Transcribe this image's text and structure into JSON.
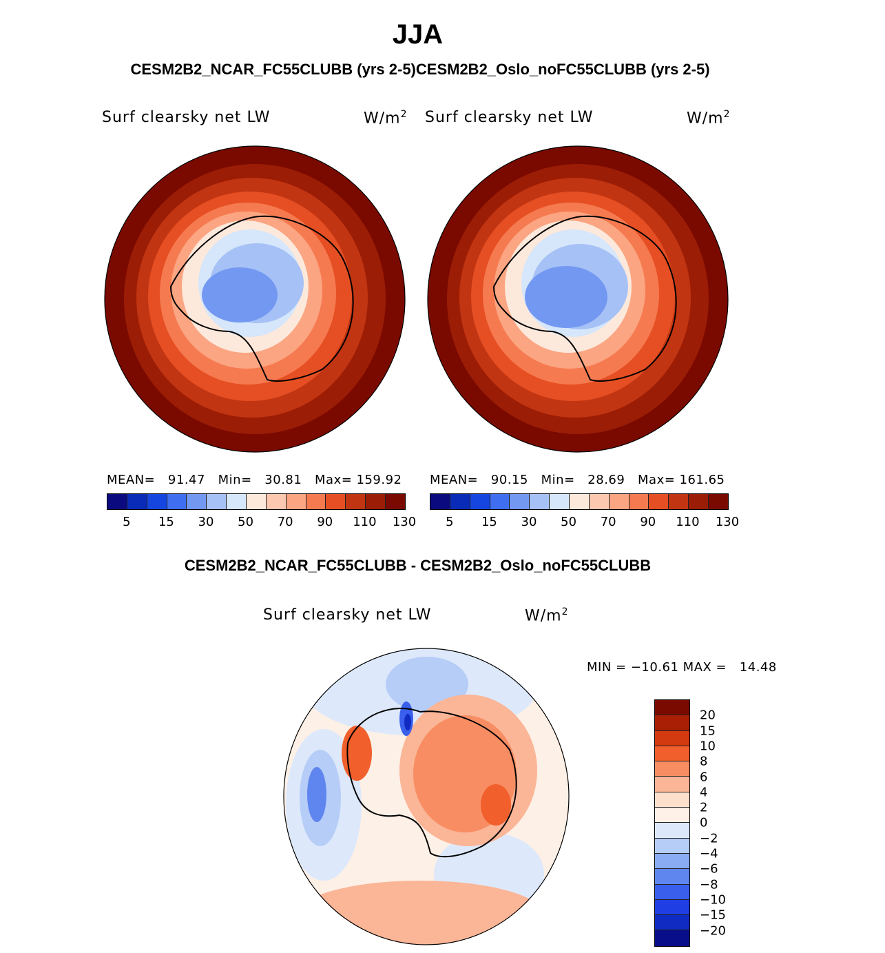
{
  "title": "JJA",
  "subtitle_top": "CESM2B2_NCAR_FC55CLUBB (yrs 2-5)CESM2B2_Oslo_noFC55CLUBB (yrs 2-5)",
  "subtitle_diff": "CESM2B2_NCAR_FC55CLUBB - CESM2B2_Oslo_noFC55CLUBB",
  "panels": [
    {
      "variable": "Surf clearsky net LW",
      "units_base": "W/m",
      "units_exp": "2",
      "stats": "MEAN=   91.47   Min=   30.81   Max= 159.92",
      "mean": 91.47,
      "min": 30.81,
      "max": 159.92
    },
    {
      "variable": "Surf clearsky net LW",
      "units_base": "W/m",
      "units_exp": "2",
      "stats": "MEAN=   90.15   Min=   28.69   Max= 161.65",
      "mean": 90.15,
      "min": 28.69,
      "max": 161.65
    }
  ],
  "abs_colorbar": {
    "colors": [
      "#0b0b7f",
      "#0a2ab8",
      "#1646e0",
      "#3f6ff0",
      "#7398f2",
      "#a6c1f5",
      "#d6e6fb",
      "#fde9dc",
      "#fcc9b0",
      "#fba582",
      "#f67a50",
      "#e64f23",
      "#c23512",
      "#9c1d05",
      "#7a0a00"
    ],
    "tick_labels": [
      "5",
      "15",
      "30",
      "50",
      "70",
      "90",
      "110",
      "130"
    ]
  },
  "diff_panel": {
    "variable": "Surf clearsky net LW",
    "units_base": "W/m",
    "units_exp": "2",
    "stats": "MIN = −10.61 MAX =   14.48",
    "min": -10.61,
    "max": 14.48
  },
  "diff_colorbar": {
    "colors": [
      "#7a0a00",
      "#a81f05",
      "#d33a10",
      "#f15f2c",
      "#f88d63",
      "#fbb597",
      "#fde0cc",
      "#fdf0e6",
      "#dde9fb",
      "#b6cdf7",
      "#8aacf3",
      "#5f86ef",
      "#3a5fec",
      "#1f3ee3",
      "#102bc2",
      "#080e8a"
    ],
    "tick_labels": [
      "20",
      "15",
      "10",
      "8",
      "6",
      "4",
      "2",
      "0",
      "−2",
      "−4",
      "−6",
      "−8",
      "−10",
      "−15",
      "−20"
    ]
  }
}
